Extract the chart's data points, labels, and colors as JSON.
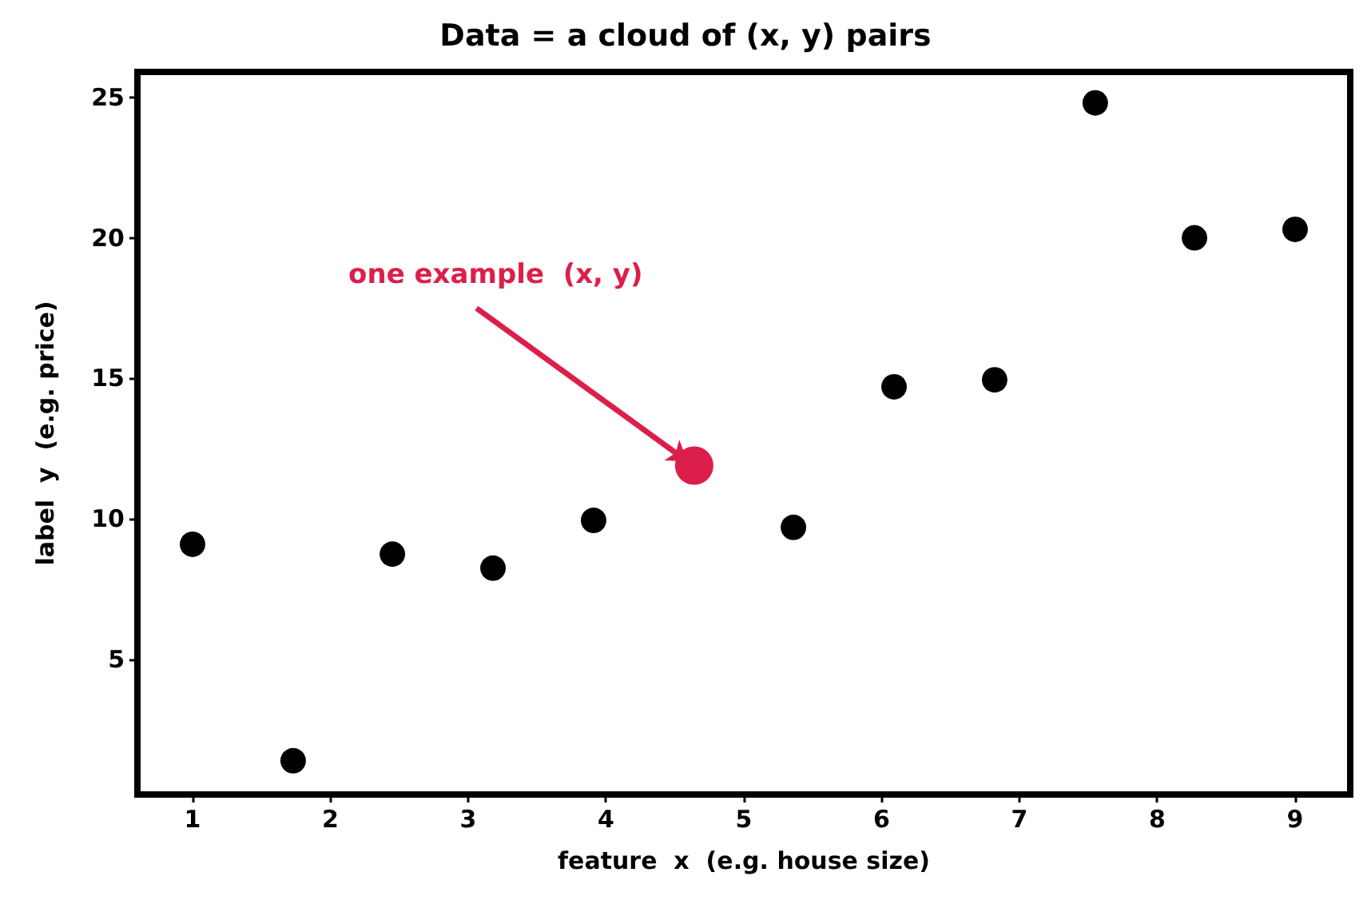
{
  "chart_data": {
    "type": "scatter",
    "title": "Data = a cloud of (x, y) pairs",
    "xlabel": "feature  x  (e.g. house size)",
    "ylabel": "label  y  (e.g. price)",
    "series": [
      {
        "color": "#000000",
        "x": [
          1,
          1.73,
          2.45,
          3.18,
          3.91,
          5.36,
          6.09,
          6.82,
          7.55,
          8.27,
          9
        ],
        "values": [
          9.1,
          1.4,
          8.75,
          8.25,
          9.95,
          9.7,
          14.7,
          14.95,
          24.8,
          20.0,
          20.3
        ]
      },
      {
        "color": "#dc1f4a",
        "x": [
          4.64
        ],
        "values": [
          11.9
        ]
      }
    ],
    "annotations": [
      {
        "text": "one example  (x, y)",
        "x": 4.64,
        "y": 11.9
      }
    ],
    "xlim": [
      0.6,
      9.4
    ],
    "ylim": [
      0.2,
      25.9
    ],
    "xticks": [
      1,
      2,
      3,
      4,
      5,
      6,
      7,
      8,
      9
    ],
    "yticks": [
      5,
      10,
      15,
      20,
      25
    ],
    "grid": false,
    "marker": "circle"
  }
}
